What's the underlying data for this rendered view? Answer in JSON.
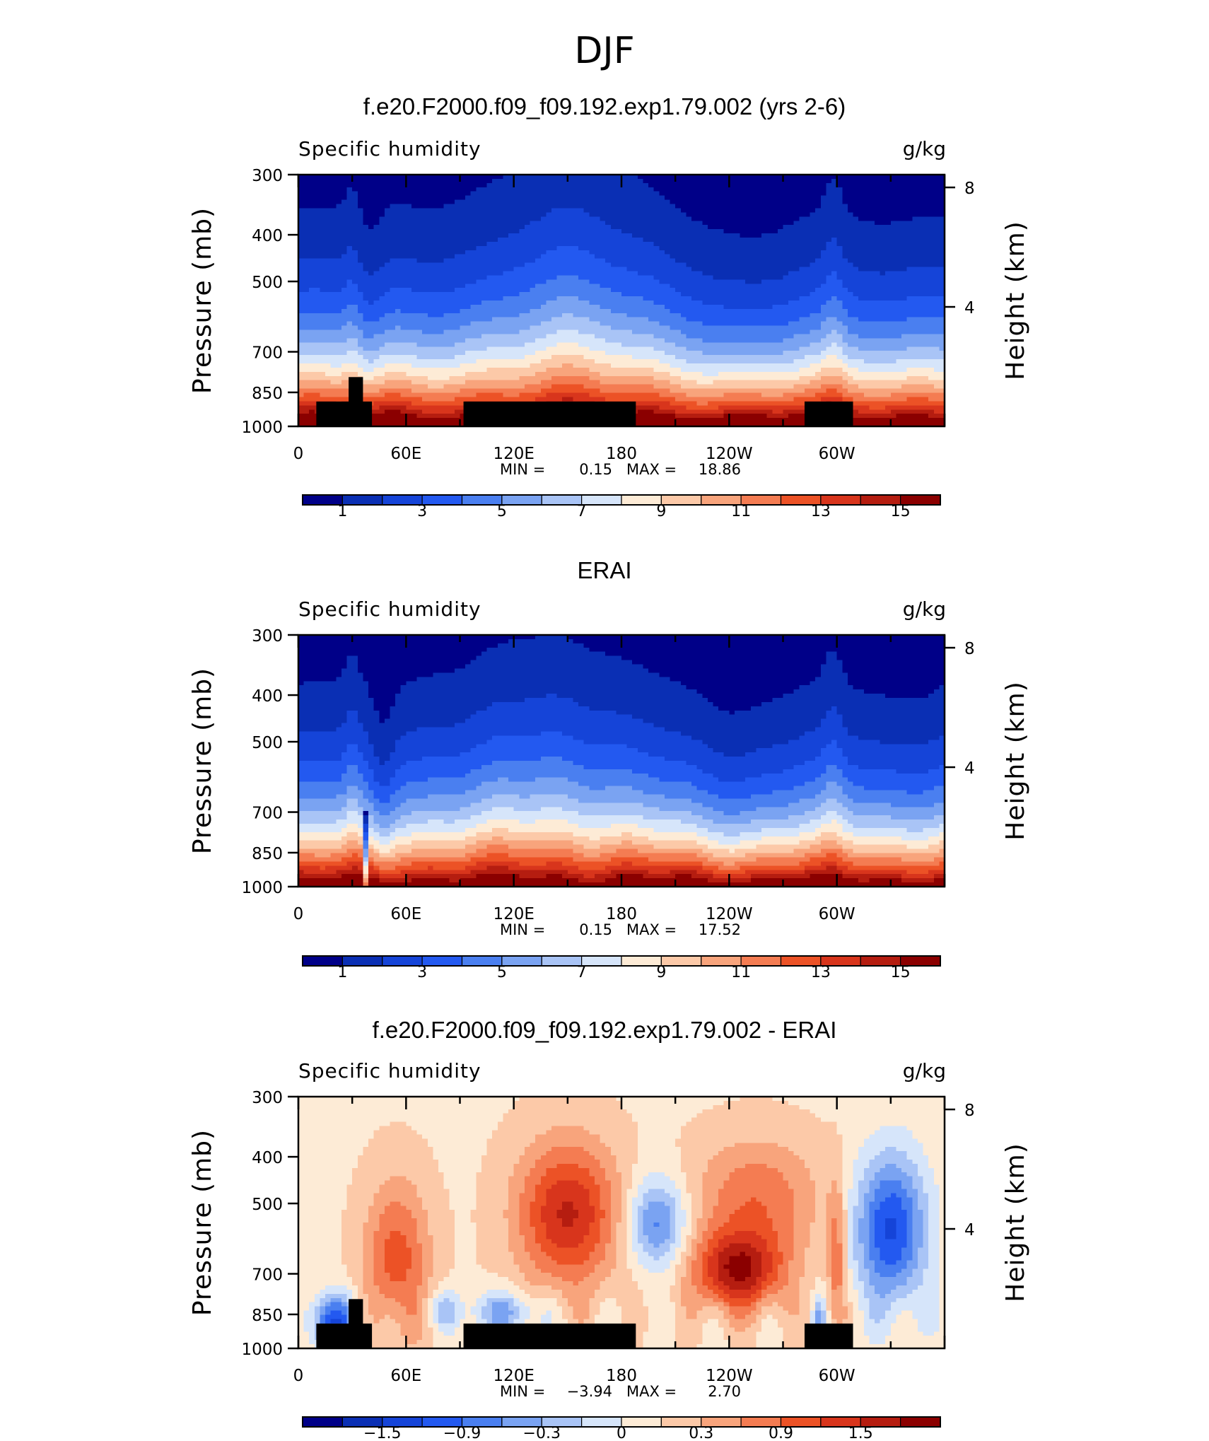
{
  "page_title": "DJF",
  "chart_data": [
    {
      "type": "heatmap",
      "title": "f.e20.F2000.f09_f09.192.exp1.79.002 (yrs 2-6)",
      "variable": "Specific humidity",
      "units": "g/kg",
      "ylabel": "Pressure (mb)",
      "ylabel_right": "Height (km)",
      "x_ticks": [
        "0",
        "60E",
        "120E",
        "180",
        "120W",
        "60W"
      ],
      "y_ticks": [
        "300",
        "400",
        "500",
        "700",
        "850",
        "1000"
      ],
      "y_right_ticks": [
        "8",
        "4"
      ],
      "xlim": [
        0,
        360
      ],
      "ylim": [
        1000,
        300
      ],
      "min_label": "MIN =",
      "min_value": "0.15",
      "max_label": "MAX =",
      "max_value": "18.86",
      "colorbar_labels": [
        "1",
        "3",
        "5",
        "7",
        "9",
        "11",
        "13",
        "15"
      ],
      "colorbar_levels": [
        0,
        1,
        2,
        3,
        4,
        5,
        6,
        7,
        8,
        9,
        10,
        11,
        12,
        13,
        14,
        15,
        16
      ],
      "mode": "model",
      "topography_masked": true
    },
    {
      "type": "heatmap",
      "title": "ERAI",
      "variable": "Specific humidity",
      "units": "g/kg",
      "ylabel": "Pressure (mb)",
      "ylabel_right": "Height (km)",
      "x_ticks": [
        "0",
        "60E",
        "120E",
        "180",
        "120W",
        "60W"
      ],
      "y_ticks": [
        "300",
        "400",
        "500",
        "700",
        "850",
        "1000"
      ],
      "y_right_ticks": [
        "8",
        "4"
      ],
      "xlim": [
        0,
        360
      ],
      "ylim": [
        1000,
        300
      ],
      "min_label": "MIN =",
      "min_value": "0.15",
      "max_label": "MAX =",
      "max_value": "17.52",
      "colorbar_labels": [
        "1",
        "3",
        "5",
        "7",
        "9",
        "11",
        "13",
        "15"
      ],
      "colorbar_levels": [
        0,
        1,
        2,
        3,
        4,
        5,
        6,
        7,
        8,
        9,
        10,
        11,
        12,
        13,
        14,
        15,
        16
      ],
      "mode": "obs",
      "topography_masked": false
    },
    {
      "type": "heatmap",
      "title": "f.e20.F2000.f09_f09.192.exp1.79.002 - ERAI",
      "variable": "Specific humidity",
      "units": "g/kg",
      "ylabel": "Pressure (mb)",
      "ylabel_right": "Height (km)",
      "x_ticks": [
        "0",
        "60E",
        "120E",
        "180",
        "120W",
        "60W"
      ],
      "y_ticks": [
        "300",
        "400",
        "500",
        "700",
        "850",
        "1000"
      ],
      "y_right_ticks": [
        "8",
        "4"
      ],
      "xlim": [
        0,
        360
      ],
      "ylim": [
        1000,
        300
      ],
      "min_label": "MIN =",
      "min_value": "−3.94",
      "max_label": "MAX =",
      "max_value": "2.70",
      "colorbar_labels": [
        "−1.5",
        "−0.9",
        "−0.3",
        "0",
        "0.3",
        "0.9",
        "1.5"
      ],
      "colorbar_levels": [
        -2.4,
        -2.1,
        -1.8,
        -1.5,
        -1.2,
        -0.9,
        -0.6,
        -0.3,
        0,
        0.3,
        0.6,
        0.9,
        1.2,
        1.5,
        1.8,
        2.1,
        2.4
      ],
      "mode": "diff",
      "topography_masked": true
    }
  ],
  "colors": {
    "palette": [
      "#000088",
      "#0a2fb4",
      "#1544d8",
      "#2359f0",
      "#4a7ff0",
      "#7aa3f2",
      "#a9c4f6",
      "#d6e5fa",
      "#fdebd6",
      "#fcc9a8",
      "#f8a47c",
      "#f47c52",
      "#ec5226",
      "#d8351c",
      "#b51d10",
      "#8b0000"
    ],
    "topography": "#000000"
  }
}
